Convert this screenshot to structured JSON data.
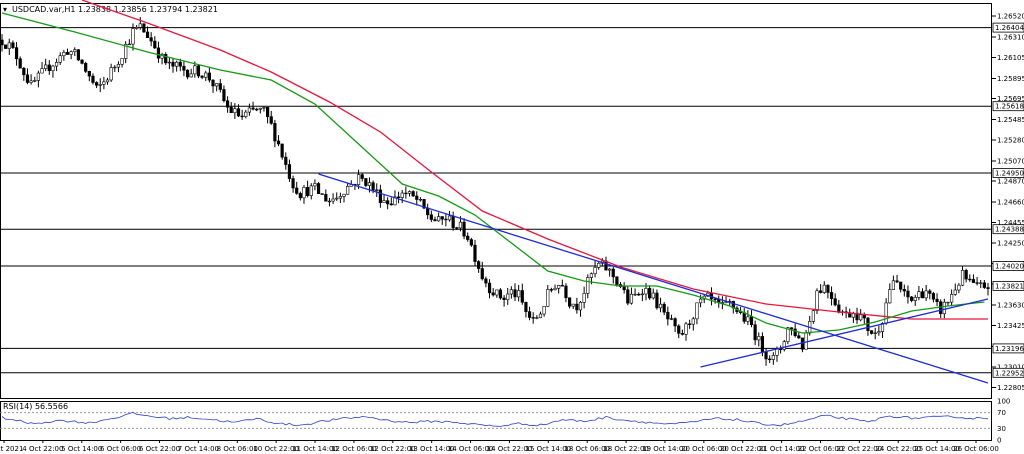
{
  "header": {
    "symbol": "USDCAD.var,H1",
    "ohlc": "1.23838 1.23856 1.23794 1.23821"
  },
  "indicator": {
    "label": "RSI(14) 56.5566"
  },
  "chart_data": {
    "type": "candlestick",
    "ylim": [
      1.227,
      1.2665
    ],
    "y_ticks": [
      "1.26520",
      "1.26310",
      "1.26105",
      "1.25895",
      "1.25695",
      "1.25485",
      "1.25280",
      "1.25070",
      "1.24870",
      "1.24660",
      "1.24455",
      "1.24250",
      "1.24045",
      "1.23840",
      "1.23630",
      "1.23425",
      "1.23215",
      "1.23010",
      "1.22805"
    ],
    "x_ticks": [
      "1 Oct 2021",
      "4 Oct 22:00",
      "5 Oct 14:00",
      "6 Oct 06:00",
      "6 Oct 22:00",
      "7 Oct 14:00",
      "8 Oct 06:00",
      "10 Oct 22:00",
      "11 Oct 14:00",
      "12 Oct 06:00",
      "12 Oct 22:00",
      "13 Oct 14:00",
      "14 Oct 06:00",
      "14 Oct 22:00",
      "15 Oct 14:00",
      "18 Oct 06:00",
      "18 Oct 22:00",
      "19 Oct 14:00",
      "20 Oct 06:00",
      "20 Oct 22:00",
      "21 Oct 14:00",
      "22 Oct 06:00",
      "22 Oct 22:00",
      "24 Oct 22:00",
      "25 Oct 14:00",
      "26 Oct 06:00"
    ],
    "levels": [
      {
        "value": 1.26404,
        "label": "1.26404"
      },
      {
        "value": 1.25618,
        "label": "1.25618"
      },
      {
        "value": 1.2495,
        "label": "1.24950"
      },
      {
        "value": 1.24388,
        "label": "1.24388"
      },
      {
        "value": 1.2402,
        "label": "1.24020"
      },
      {
        "value": 1.23196,
        "label": "1.23196"
      },
      {
        "value": 1.22952,
        "label": "1.22952"
      }
    ],
    "current_price": {
      "value": 1.23821,
      "label": "1.23821"
    },
    "close_path": [
      [
        0,
        1.2628
      ],
      [
        2,
        1.2622
      ],
      [
        4,
        1.2612
      ],
      [
        6,
        1.2596
      ],
      [
        8,
        1.2582
      ],
      [
        10,
        1.259
      ],
      [
        13,
        1.2602
      ],
      [
        16,
        1.2611
      ],
      [
        18,
        1.2618
      ],
      [
        20,
        1.2613
      ],
      [
        22,
        1.2604
      ],
      [
        24,
        1.2591
      ],
      [
        26,
        1.2578
      ],
      [
        28,
        1.2586
      ],
      [
        30,
        1.2597
      ],
      [
        32,
        1.2608
      ],
      [
        34,
        1.2622
      ],
      [
        36,
        1.2636
      ],
      [
        38,
        1.2641
      ],
      [
        40,
        1.2633
      ],
      [
        42,
        1.2622
      ],
      [
        44,
        1.2609
      ],
      [
        46,
        1.2602
      ],
      [
        48,
        1.2601
      ],
      [
        51,
        1.2597
      ],
      [
        54,
        1.2597
      ],
      [
        57,
        1.259
      ],
      [
        60,
        1.2574
      ],
      [
        62,
        1.256
      ],
      [
        64,
        1.2555
      ],
      [
        66,
        1.2551
      ],
      [
        68,
        1.2555
      ],
      [
        70,
        1.2558
      ],
      [
        72,
        1.2556
      ],
      [
        74,
        1.2542
      ],
      [
        76,
        1.2524
      ],
      [
        78,
        1.2503
      ],
      [
        80,
        1.2484
      ],
      [
        82,
        1.2475
      ],
      [
        84,
        1.2478
      ],
      [
        86,
        1.2479
      ],
      [
        88,
        1.2472
      ],
      [
        90,
        1.2468
      ],
      [
        92,
        1.2471
      ],
      [
        94,
        1.2479
      ],
      [
        96,
        1.2484
      ],
      [
        98,
        1.249
      ],
      [
        100,
        1.2487
      ],
      [
        102,
        1.2479
      ],
      [
        104,
        1.2471
      ],
      [
        106,
        1.2466
      ],
      [
        108,
        1.2469
      ],
      [
        110,
        1.2476
      ],
      [
        112,
        1.2472
      ],
      [
        114,
        1.2468
      ],
      [
        116,
        1.2458
      ],
      [
        118,
        1.245
      ],
      [
        120,
        1.2446
      ],
      [
        122,
        1.245
      ],
      [
        124,
        1.2445
      ],
      [
        126,
        1.244
      ],
      [
        128,
        1.2432
      ],
      [
        130,
        1.2412
      ],
      [
        132,
        1.2392
      ],
      [
        134,
        1.2381
      ],
      [
        136,
        1.2373
      ],
      [
        138,
        1.237
      ],
      [
        140,
        1.2376
      ],
      [
        142,
        1.2372
      ],
      [
        144,
        1.2356
      ],
      [
        146,
        1.2346
      ],
      [
        148,
        1.2356
      ],
      [
        150,
        1.2373
      ],
      [
        152,
        1.2384
      ],
      [
        154,
        1.2383
      ],
      [
        156,
        1.2367
      ],
      [
        158,
        1.2363
      ],
      [
        160,
        1.2377
      ],
      [
        162,
        1.2393
      ],
      [
        164,
        1.2403
      ],
      [
        166,
        1.24
      ],
      [
        168,
        1.2392
      ],
      [
        170,
        1.2382
      ],
      [
        172,
        1.2367
      ],
      [
        174,
        1.2372
      ],
      [
        176,
        1.238
      ],
      [
        178,
        1.2375
      ],
      [
        180,
        1.2365
      ],
      [
        182,
        1.2353
      ],
      [
        184,
        1.2344
      ],
      [
        186,
        1.233
      ],
      [
        188,
        1.234
      ],
      [
        190,
        1.2354
      ],
      [
        192,
        1.2366
      ],
      [
        194,
        1.2369
      ],
      [
        196,
        1.2364
      ],
      [
        198,
        1.236
      ],
      [
        200,
        1.2364
      ],
      [
        202,
        1.2358
      ],
      [
        204,
        1.235
      ],
      [
        206,
        1.2342
      ],
      [
        208,
        1.2326
      ],
      [
        210,
        1.2315
      ],
      [
        212,
        1.2309
      ],
      [
        214,
        1.232
      ],
      [
        216,
        1.234
      ],
      [
        218,
        1.2336
      ],
      [
        220,
        1.2322
      ],
      [
        222,
        1.2348
      ],
      [
        224,
        1.2377
      ],
      [
        226,
        1.2382
      ],
      [
        228,
        1.2373
      ],
      [
        230,
        1.236
      ],
      [
        232,
        1.2353
      ],
      [
        234,
        1.2357
      ],
      [
        236,
        1.2351
      ],
      [
        238,
        1.234
      ],
      [
        240,
        1.2333
      ],
      [
        242,
        1.235
      ],
      [
        244,
        1.238
      ],
      [
        246,
        1.2385
      ],
      [
        248,
        1.2372
      ],
      [
        250,
        1.2368
      ],
      [
        252,
        1.2374
      ],
      [
        254,
        1.2378
      ],
      [
        256,
        1.2364
      ],
      [
        258,
        1.2358
      ],
      [
        260,
        1.2367
      ],
      [
        262,
        1.238
      ],
      [
        264,
        1.2392
      ],
      [
        266,
        1.2385
      ],
      [
        268,
        1.238
      ],
      [
        270,
        1.2382
      ],
      [
        271,
        1.2382
      ]
    ],
    "ma_fast": [
      [
        0,
        1.2655
      ],
      [
        20,
        1.2636
      ],
      [
        40,
        1.2616
      ],
      [
        60,
        1.2598
      ],
      [
        74,
        1.2588
      ],
      [
        86,
        1.2564
      ],
      [
        98,
        1.2524
      ],
      [
        110,
        1.2484
      ],
      [
        120,
        1.2472
      ],
      [
        130,
        1.2453
      ],
      [
        140,
        1.2425
      ],
      [
        150,
        1.2397
      ],
      [
        160,
        1.2387
      ],
      [
        170,
        1.2382
      ],
      [
        180,
        1.2382
      ],
      [
        190,
        1.2373
      ],
      [
        200,
        1.2362
      ],
      [
        210,
        1.2345
      ],
      [
        220,
        1.2335
      ],
      [
        230,
        1.2338
      ],
      [
        240,
        1.2346
      ],
      [
        250,
        1.2357
      ],
      [
        260,
        1.2362
      ],
      [
        270,
        1.2366
      ]
    ],
    "ma_slow": [
      [
        22,
        1.2668
      ],
      [
        40,
        1.2645
      ],
      [
        60,
        1.2618
      ],
      [
        74,
        1.2596
      ],
      [
        90,
        1.2566
      ],
      [
        104,
        1.2536
      ],
      [
        118,
        1.2496
      ],
      [
        132,
        1.2457
      ],
      [
        150,
        1.2429
      ],
      [
        170,
        1.2401
      ],
      [
        190,
        1.2379
      ],
      [
        210,
        1.2364
      ],
      [
        230,
        1.2356
      ],
      [
        250,
        1.2349
      ],
      [
        271,
        1.2349
      ]
    ],
    "trendlines": [
      {
        "from": [
          87,
          1.2494
        ],
        "to": [
          271,
          1.2285
        ]
      },
      {
        "from": [
          192,
          1.2301
        ],
        "to": [
          271,
          1.2369
        ]
      }
    ],
    "rsi": {
      "range": [
        0,
        100
      ],
      "ticks": [
        "100",
        "70",
        "30",
        "0"
      ],
      "levels": [
        70,
        30
      ],
      "values": [
        [
          0,
          58
        ],
        [
          8,
          42
        ],
        [
          16,
          50
        ],
        [
          24,
          44
        ],
        [
          30,
          55
        ],
        [
          36,
          68
        ],
        [
          40,
          62
        ],
        [
          46,
          55
        ],
        [
          52,
          58
        ],
        [
          58,
          52
        ],
        [
          64,
          45
        ],
        [
          70,
          55
        ],
        [
          76,
          42
        ],
        [
          82,
          38
        ],
        [
          88,
          48
        ],
        [
          94,
          55
        ],
        [
          100,
          60
        ],
        [
          106,
          50
        ],
        [
          112,
          45
        ],
        [
          118,
          48
        ],
        [
          124,
          46
        ],
        [
          130,
          40
        ],
        [
          136,
          35
        ],
        [
          142,
          42
        ],
        [
          148,
          38
        ],
        [
          154,
          52
        ],
        [
          160,
          48
        ],
        [
          166,
          58
        ],
        [
          172,
          50
        ],
        [
          178,
          45
        ],
        [
          184,
          40
        ],
        [
          190,
          46
        ],
        [
          196,
          55
        ],
        [
          202,
          52
        ],
        [
          208,
          42
        ],
        [
          214,
          38
        ],
        [
          220,
          48
        ],
        [
          226,
          62
        ],
        [
          232,
          55
        ],
        [
          238,
          46
        ],
        [
          244,
          62
        ],
        [
          250,
          56
        ],
        [
          256,
          58
        ],
        [
          262,
          60
        ],
        [
          266,
          55
        ],
        [
          271,
          57
        ]
      ]
    }
  }
}
